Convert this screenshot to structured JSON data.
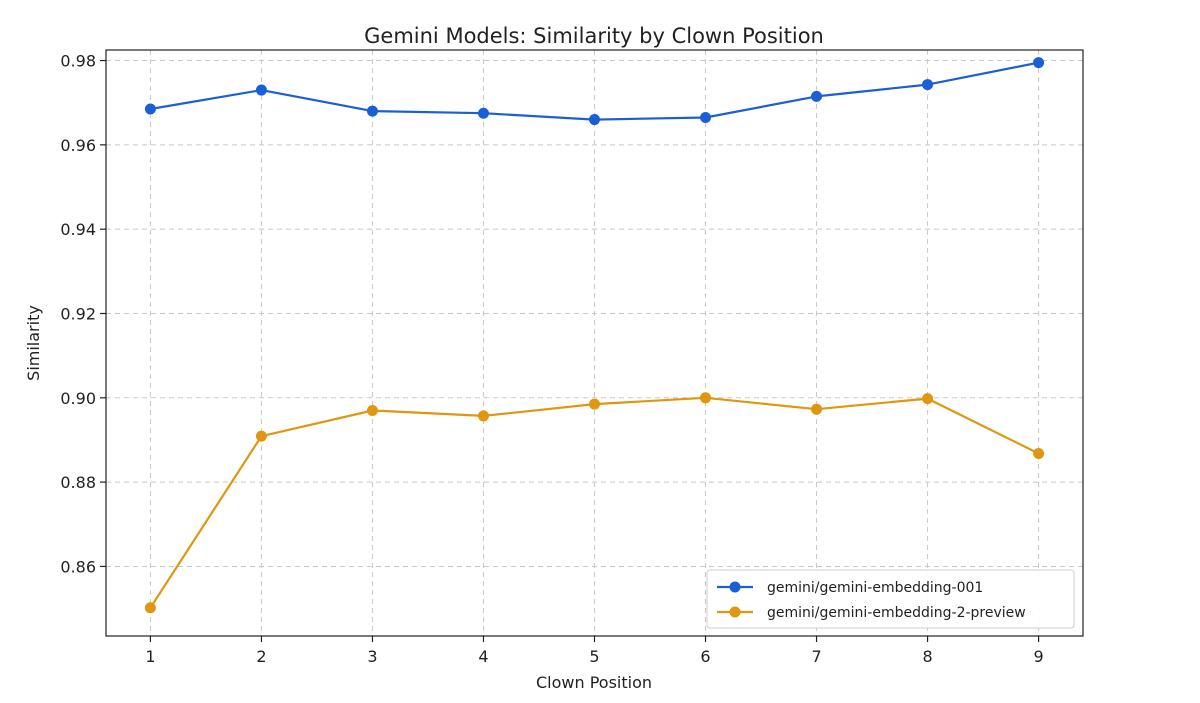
{
  "chart_data": {
    "type": "line",
    "title": "Gemini Models: Similarity by Clown Position",
    "xlabel": "Clown Position",
    "ylabel": "Similarity",
    "x": [
      1,
      2,
      3,
      4,
      5,
      6,
      7,
      8,
      9
    ],
    "x_ticks": [
      "1",
      "2",
      "3",
      "4",
      "5",
      "6",
      "7",
      "8",
      "9"
    ],
    "xlim": [
      0.6,
      9.4
    ],
    "ylim": [
      0.8435,
      0.9825
    ],
    "y_ticks": [
      0.86,
      0.88,
      0.9,
      0.92,
      0.94,
      0.96,
      0.98
    ],
    "y_tick_labels": [
      "0.86",
      "0.88",
      "0.90",
      "0.92",
      "0.94",
      "0.96",
      "0.98"
    ],
    "grid": true,
    "legend_position": "bottom-right",
    "series": [
      {
        "name": "gemini/gemini-embedding-001",
        "color": "#1a5fd6",
        "values": [
          0.9685,
          0.973,
          0.968,
          0.9675,
          0.966,
          0.9665,
          0.9715,
          0.9743,
          0.9795
        ]
      },
      {
        "name": "gemini/gemini-embedding-2-preview",
        "color": "#e1960f",
        "values": [
          0.8502,
          0.8909,
          0.897,
          0.8957,
          0.8985,
          0.9,
          0.8973,
          0.8998,
          0.8868
        ]
      }
    ]
  }
}
